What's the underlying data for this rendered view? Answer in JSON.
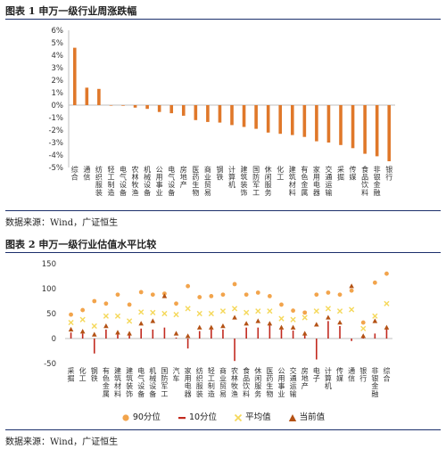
{
  "figure1": {
    "title": "图表 1  申万一级行业周涨跌幅",
    "source": "数据来源：Wind，广证恒生"
  },
  "figure2": {
    "title": "图表 2  申万一级行业估值水平比较",
    "source": "数据来源：Wind，广证恒生"
  },
  "colors": {
    "bar": "#e0782a",
    "p90": "#f2a44c",
    "p10": "#c22a1f",
    "mean": "#f5d85a",
    "current": "#b45215",
    "rule": "#1b2f6b",
    "axis": "#bfbfbf"
  },
  "chart_data": [
    {
      "type": "bar",
      "categories": [
        "综合",
        "通信",
        "纺织服装",
        "轻工制造",
        "电气设备",
        "农林牧渔",
        "机械设备",
        "公用事业",
        "电气设备",
        "房地产",
        "医药生物",
        "商业贸易",
        "钢铁",
        "计算机",
        "建筑装饰",
        "国防军工",
        "休闲服务",
        "化工",
        "建筑材料",
        "有色金属",
        "家用电器",
        "交通运输",
        "采掘",
        "传媒",
        "食品饮料",
        "非银金融",
        "银行"
      ],
      "series": [
        {
          "values": [
            4.6,
            1.4,
            1.3,
            0.0,
            -0.05,
            -0.2,
            -0.3,
            -0.55,
            -0.65,
            -0.85,
            -1.2,
            -1.35,
            -1.4,
            -1.6,
            -1.75,
            -1.9,
            -2.2,
            -2.3,
            -2.4,
            -2.55,
            -2.9,
            -3.0,
            -3.2,
            -3.45,
            -3.9,
            -4.1,
            -4.5
          ]
        }
      ],
      "tick_labels": [
        "6%",
        "5%",
        "4%",
        "3%",
        "2%",
        "1%",
        "0%",
        "-1%",
        "-2%",
        "-3%",
        "-4%",
        "-5%"
      ],
      "ylim": [
        -5,
        6
      ],
      "grid": false
    },
    {
      "type": "scatter",
      "categories": [
        "采掘",
        "化工",
        "钢铁",
        "有色金属",
        "建筑材料",
        "建筑装饰",
        "电气设备",
        "机械设备",
        "国防军工",
        "汽车",
        "家用电器",
        "纺织服装",
        "轻工制造",
        "商业贸易",
        "农林牧渔",
        "食品饮料",
        "休闲服务",
        "医药生物",
        "公用事业",
        "交通运输",
        "房地产",
        "电子",
        "计算机",
        "传媒",
        "通信",
        "银行",
        "非银金融",
        "综合"
      ],
      "series": [
        {
          "name": "90分位",
          "values": [
            48,
            57,
            75,
            70,
            88,
            68,
            93,
            88,
            90,
            70,
            105,
            83,
            85,
            88,
            109,
            88,
            92,
            85,
            68,
            56,
            52,
            88,
            92,
            88,
            96,
            32,
            112,
            130
          ]
        },
        {
          "name": "10分位",
          "values": [
            12,
            10,
            -30,
            18,
            8,
            8,
            20,
            18,
            22,
            2,
            -20,
            15,
            18,
            18,
            -45,
            22,
            22,
            28,
            18,
            16,
            8,
            -42,
            35,
            25,
            -5,
            5,
            10,
            20
          ]
        },
        {
          "name": "平均值",
          "values": [
            32,
            38,
            25,
            45,
            45,
            35,
            53,
            52,
            50,
            48,
            60,
            50,
            50,
            55,
            60,
            52,
            55,
            55,
            40,
            38,
            42,
            55,
            60,
            55,
            58,
            20,
            45,
            70
          ]
        },
        {
          "name": "当前值",
          "values": [
            18,
            14,
            8,
            25,
            12,
            10,
            30,
            35,
            85,
            10,
            5,
            22,
            22,
            25,
            42,
            30,
            35,
            30,
            22,
            22,
            10,
            28,
            42,
            32,
            105,
            5,
            35,
            22
          ]
        }
      ],
      "tick_labels": [
        "150",
        "100",
        "50",
        "0",
        "-50"
      ],
      "ylim": [
        -50,
        150
      ],
      "grid": false,
      "legend_position": "bottom"
    }
  ]
}
